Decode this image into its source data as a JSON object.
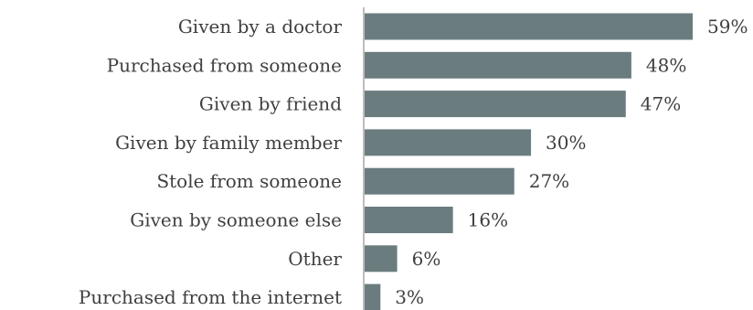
{
  "chart_data": {
    "type": "bar",
    "orientation": "horizontal",
    "categories": [
      "Given by a doctor",
      "Purchased from someone",
      "Given by friend",
      "Given by family member",
      "Stole from someone",
      "Given by someone else",
      "Other",
      "Purchased from the internet"
    ],
    "values": [
      59,
      48,
      47,
      30,
      27,
      16,
      6,
      3
    ],
    "value_labels": [
      "59%",
      "48%",
      "47%",
      "30%",
      "27%",
      "16%",
      "6%",
      "3%"
    ],
    "unit": "%",
    "title": "",
    "xlabel": "",
    "ylabel": "",
    "xlim": [
      0,
      59
    ],
    "grid": false,
    "legend": "none",
    "colors": {
      "bar": "#6b7c7f",
      "axis": "#bdbdbd",
      "text": "#3f3f3f"
    }
  }
}
